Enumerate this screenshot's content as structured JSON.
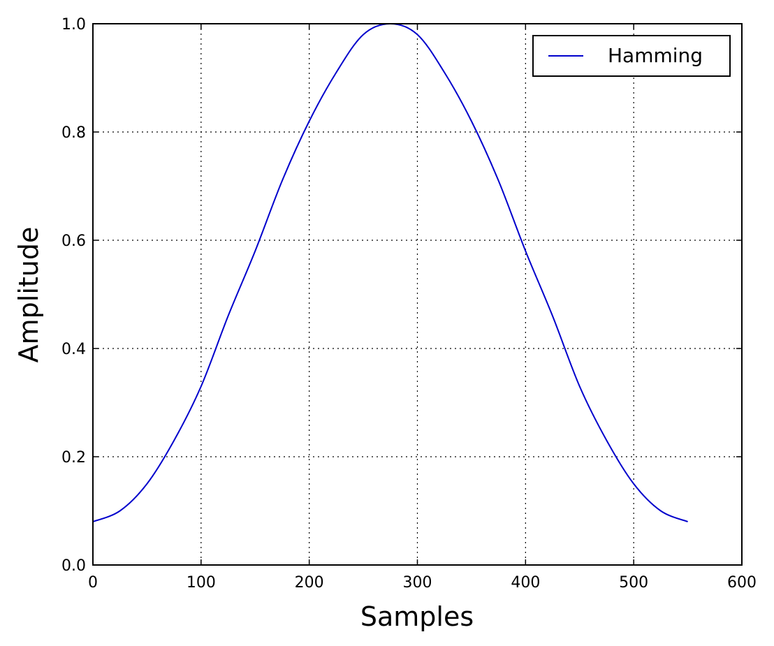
{
  "chart_data": {
    "type": "line",
    "title": "",
    "xlabel": "Samples",
    "ylabel": "Amplitude",
    "xlim": [
      0,
      600
    ],
    "ylim": [
      0.0,
      1.0
    ],
    "x_ticks": [
      "0",
      "100",
      "200",
      "300",
      "400",
      "500",
      "600"
    ],
    "y_ticks": [
      "0.0",
      "0.2",
      "0.4",
      "0.6",
      "0.8",
      "1.0"
    ],
    "grid": true,
    "legend_position": "top-right",
    "series": [
      {
        "name": "Hamming",
        "color": "#0000cc",
        "x": [
          0,
          25,
          50,
          75,
          100,
          125,
          150,
          175,
          200,
          225,
          250,
          275,
          300,
          325,
          350,
          375,
          400,
          425,
          450,
          475,
          500,
          525,
          550
        ],
        "y": [
          0.08,
          0.1,
          0.15,
          0.23,
          0.33,
          0.46,
          0.58,
          0.71,
          0.82,
          0.91,
          0.98,
          1.0,
          0.98,
          0.91,
          0.82,
          0.71,
          0.58,
          0.46,
          0.33,
          0.23,
          0.15,
          0.1,
          0.08
        ]
      }
    ]
  }
}
